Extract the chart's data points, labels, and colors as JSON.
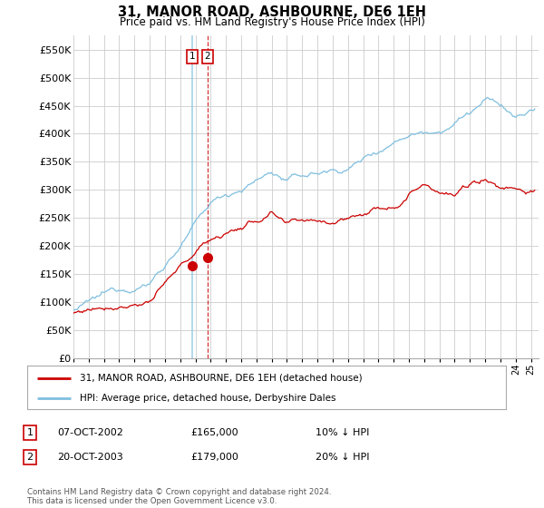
{
  "title": "31, MANOR ROAD, ASHBOURNE, DE6 1EH",
  "subtitle": "Price paid vs. HM Land Registry's House Price Index (HPI)",
  "ylabel_ticks": [
    "£0",
    "£50K",
    "£100K",
    "£150K",
    "£200K",
    "£250K",
    "£300K",
    "£350K",
    "£400K",
    "£450K",
    "£500K",
    "£550K"
  ],
  "ylim": [
    0,
    575000
  ],
  "xlim_start": 1995.0,
  "xlim_end": 2025.5,
  "hpi_color": "#7fbfdf",
  "price_color": "#cc0000",
  "ann1_x": 2002.77,
  "ann1_y": 165000,
  "ann2_x": 2003.8,
  "ann2_y": 179000,
  "legend_line1": "31, MANOR ROAD, ASHBOURNE, DE6 1EH (detached house)",
  "legend_line2": "HPI: Average price, detached house, Derbyshire Dales",
  "table_row1": [
    "1",
    "07-OCT-2002",
    "£165,000",
    "10% ↓ HPI"
  ],
  "table_row2": [
    "2",
    "20-OCT-2003",
    "£179,000",
    "20% ↓ HPI"
  ],
  "footer": "Contains HM Land Registry data © Crown copyright and database right 2024.\nThis data is licensed under the Open Government Licence v3.0.",
  "bg_color": "#ffffff",
  "grid_color": "#cccccc"
}
